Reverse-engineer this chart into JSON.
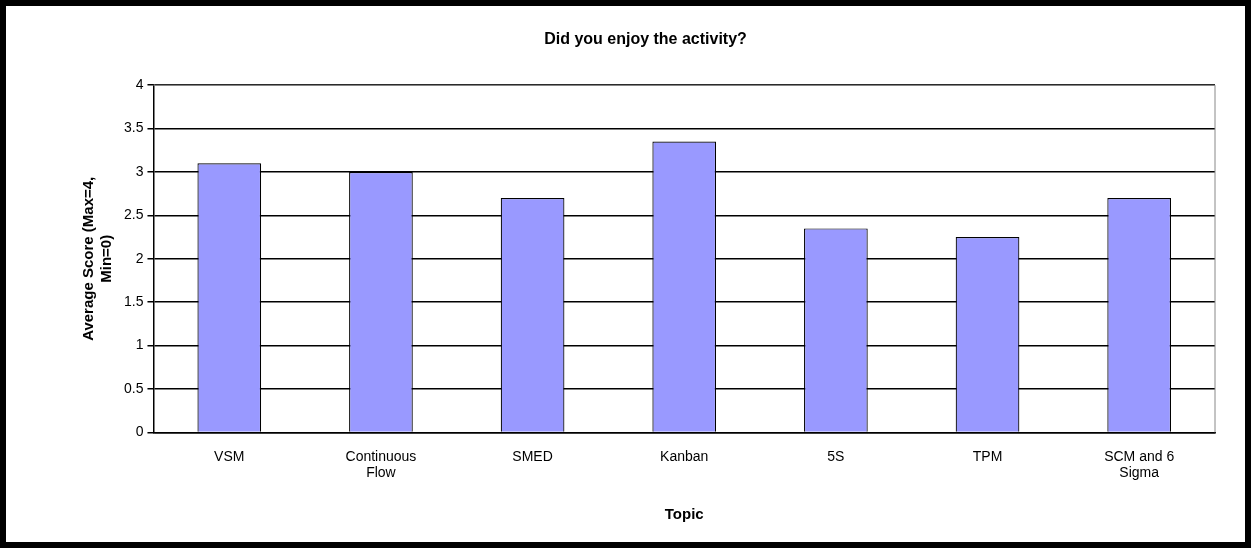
{
  "chart_data": {
    "type": "bar",
    "title": "Did you enjoy the activity?",
    "xlabel": "Topic",
    "ylabel": "Average Score (Max=4, Min=0)",
    "categories": [
      "VSM",
      "Continuous Flow",
      "SMED",
      "Kanban",
      "5S",
      "TPM",
      "SCM and 6 Sigma"
    ],
    "values": [
      3.1,
      3.0,
      2.7,
      3.35,
      2.35,
      2.25,
      2.7
    ],
    "color": "#9999ff",
    "ylim": [
      0,
      4
    ],
    "yticks": [
      0,
      0.5,
      1,
      1.5,
      2,
      2.5,
      3,
      3.5,
      4
    ],
    "grid": "y",
    "legend": false
  }
}
